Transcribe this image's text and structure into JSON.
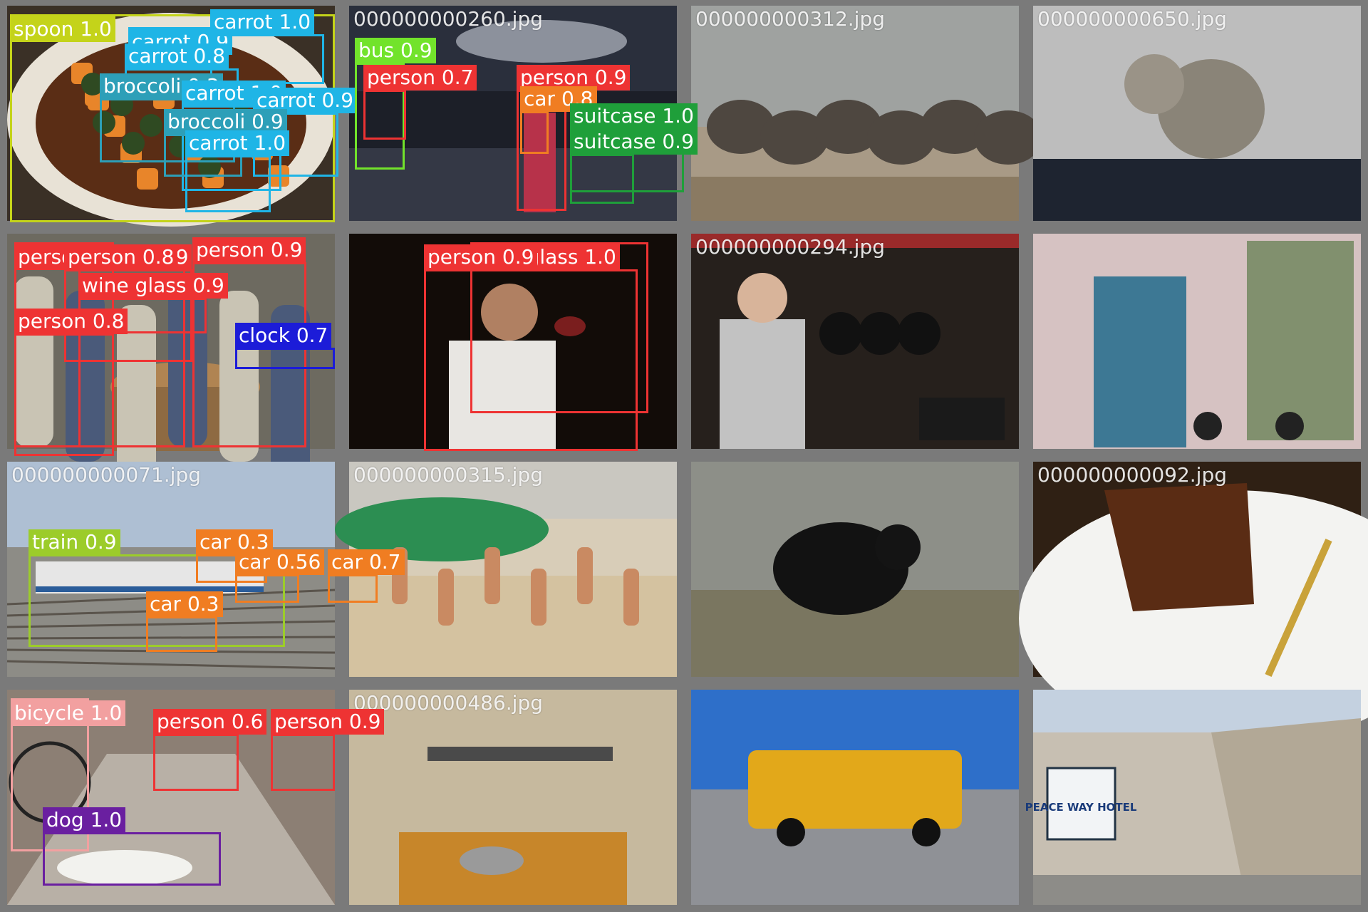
{
  "tiles": [
    {
      "filename": "",
      "scene": "food-bowl",
      "detections": [
        {
          "label": "spoon 1.0",
          "color": "#c4d31a"
        },
        {
          "label": "carrot 0.9",
          "color": "#1fb5e6"
        },
        {
          "label": "carrot 1.0",
          "color": "#1fb5e6"
        },
        {
          "label": "carrot 0.8",
          "color": "#1fb5e6"
        },
        {
          "label": "broccoli 0.3",
          "color": "#2d9fb8"
        },
        {
          "label": "carrot 1.0",
          "color": "#1fb5e6"
        },
        {
          "label": "carrot 0.9",
          "color": "#1fb5e6"
        },
        {
          "label": "broccoli 0.9",
          "color": "#2d9fb8"
        },
        {
          "label": "carrot 1.0",
          "color": "#1fb5e6"
        }
      ]
    },
    {
      "filename": "000000000260.jpg",
      "scene": "night-station",
      "detections": [
        {
          "label": "bus 0.9",
          "color": "#72e32b"
        },
        {
          "label": "person 0.7",
          "color": "#ee3333"
        },
        {
          "label": "person 0.9",
          "color": "#ee3333"
        },
        {
          "label": "car 0.8",
          "color": "#f07d22"
        },
        {
          "label": "suitcase 1.0",
          "color": "#1f9f3a"
        },
        {
          "label": "suitcase 0.9",
          "color": "#1f9f3a"
        }
      ]
    },
    {
      "filename": "000000000312.jpg",
      "scene": "elephants",
      "detections": []
    },
    {
      "filename": "000000000650.jpg",
      "scene": "cat",
      "detections": []
    },
    {
      "filename": "",
      "scene": "wine-crowd",
      "detections": [
        {
          "label": "person 0.9",
          "color": "#ee3333"
        },
        {
          "label": "person 0.9",
          "color": "#ee3333"
        },
        {
          "label": "person 0.8",
          "color": "#ee3333"
        },
        {
          "label": "person 0.9",
          "color": "#ee3333"
        },
        {
          "label": "wine glass 0.9",
          "color": "#ee3333"
        },
        {
          "label": "person 0.8",
          "color": "#ee3333"
        },
        {
          "label": "clock 0.7",
          "color": "#1c1cd8"
        }
      ]
    },
    {
      "filename": "",
      "scene": "wine-man",
      "detections": [
        {
          "label": "wine glass 1.0",
          "color": "#ee3333"
        },
        {
          "label": "person 0.9",
          "color": "#ee3333"
        }
      ]
    },
    {
      "filename": "000000000294.jpg",
      "scene": "kitchen-pans",
      "detections": []
    },
    {
      "filename": "",
      "scene": "door",
      "detections": []
    },
    {
      "filename": "000000000071.jpg",
      "scene": "train",
      "detections": [
        {
          "label": "train 0.9",
          "color": "#9ccc2a"
        },
        {
          "label": "car 0.3",
          "color": "#f07d22"
        },
        {
          "label": "car 0.56",
          "color": "#f07d22"
        },
        {
          "label": "car 0.7",
          "color": "#f07d22"
        },
        {
          "label": "car 0.3",
          "color": "#f07d22"
        }
      ]
    },
    {
      "filename": "000000000315.jpg",
      "scene": "beach",
      "detections": []
    },
    {
      "filename": "",
      "scene": "bear",
      "detections": []
    },
    {
      "filename": "000000000092.jpg",
      "scene": "cake",
      "detections": []
    },
    {
      "filename": "",
      "scene": "street-dog",
      "detections": [
        {
          "label": "bicycle 1.0",
          "color": "#f2a0a0"
        },
        {
          "label": "person 0.6",
          "color": "#ee3333"
        },
        {
          "label": "person 0.9",
          "color": "#ee3333"
        },
        {
          "label": "dog 1.0",
          "color": "#6a1fa0"
        }
      ]
    },
    {
      "filename": "000000000486.jpg",
      "scene": "kitchen-prep",
      "detections": []
    },
    {
      "filename": "",
      "scene": "bus-yellow",
      "detections": []
    },
    {
      "filename": "",
      "scene": "hotel-street",
      "sign_text": "PEACE WAY HOTEL",
      "detections": []
    }
  ]
}
